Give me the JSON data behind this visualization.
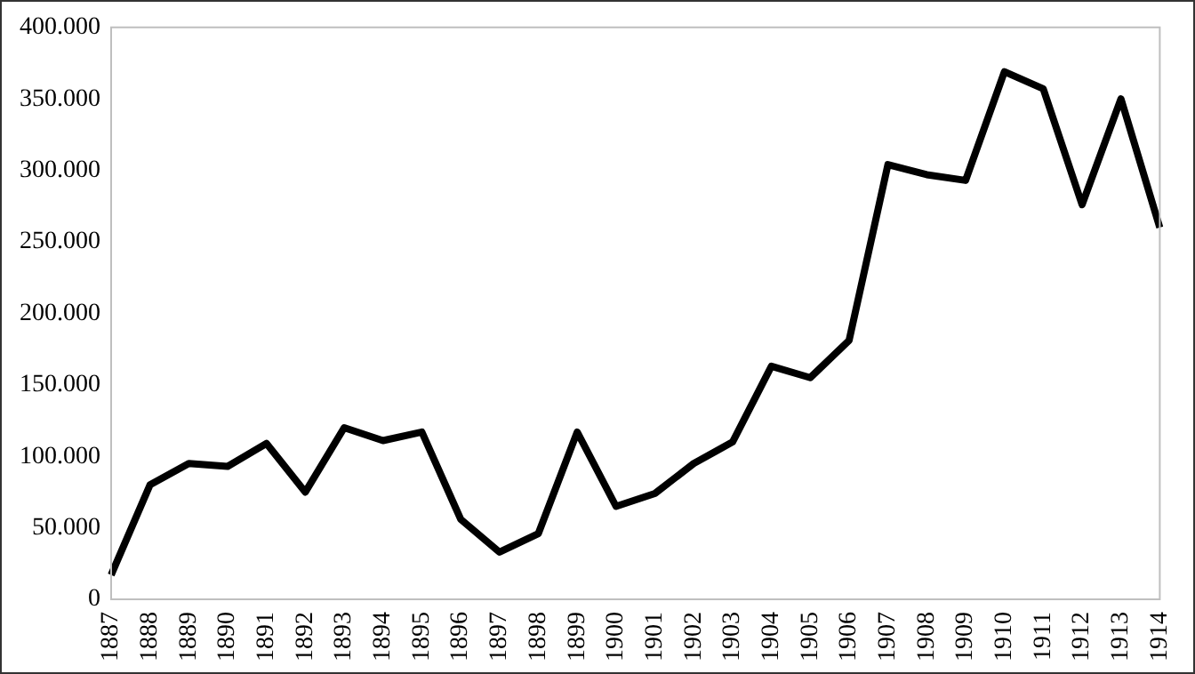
{
  "chart_data": {
    "type": "line",
    "categories": [
      "1887",
      "1888",
      "1889",
      "1890",
      "1891",
      "1892",
      "1893",
      "1894",
      "1895",
      "1896",
      "1897",
      "1898",
      "1899",
      "1900",
      "1901",
      "1902",
      "1903",
      "1904",
      "1905",
      "1906",
      "1907",
      "1908",
      "1909",
      "1910",
      "1911",
      "1912",
      "1913",
      "1914"
    ],
    "series": [
      {
        "color": "#000000",
        "values": [
          17000,
          80000,
          95000,
          93000,
          109000,
          75000,
          120000,
          111000,
          117000,
          56000,
          33000,
          46000,
          117000,
          65000,
          74000,
          95000,
          110000,
          163000,
          155000,
          181000,
          304000,
          297000,
          293000,
          369000,
          357000,
          276000,
          350000,
          260000
        ]
      }
    ],
    "ylim": [
      0,
      400000
    ],
    "yticks": [
      0,
      {
        "value": 50000,
        "label": "50.000"
      },
      {
        "value": 100000,
        "label": "100.000"
      },
      {
        "value": 150000,
        "label": "150.000"
      },
      {
        "value": 200000,
        "label": "200.000"
      },
      {
        "value": 250000,
        "label": "250.000"
      },
      {
        "value": 300000,
        "label": "300.000"
      },
      {
        "value": 350000,
        "label": "350.000"
      },
      {
        "value": 400000,
        "label": "400.000"
      }
    ],
    "grid": false,
    "legend": false,
    "marker": "none",
    "line_style": "solid"
  }
}
